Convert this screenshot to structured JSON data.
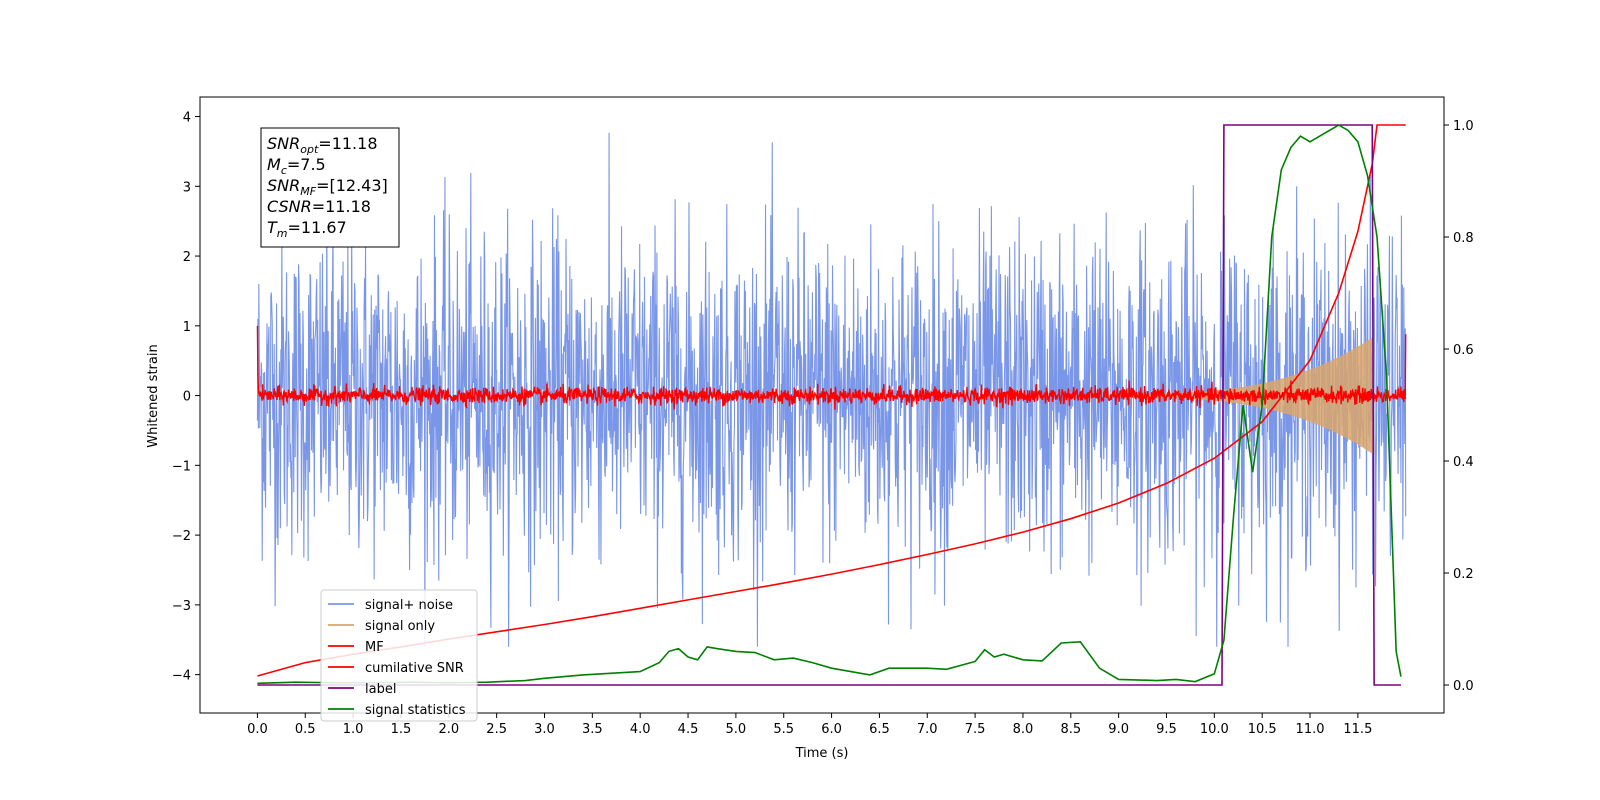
{
  "chart_data": {
    "type": "line",
    "xlabel": "Time (s)",
    "ylabel": "Whitened strain",
    "xlim": [
      -0.6,
      12.4
    ],
    "ylim_left": [
      -4.55,
      4.28
    ],
    "ylim_right": [
      -0.05,
      1.05
    ],
    "xticks": [
      "0.0",
      "0.5",
      "1.0",
      "1.5",
      "2.0",
      "2.5",
      "3.0",
      "3.5",
      "4.0",
      "4.5",
      "5.0",
      "5.5",
      "6.0",
      "6.5",
      "7.0",
      "7.5",
      "8.0",
      "8.5",
      "9.0",
      "9.5",
      "10.0",
      "10.5",
      "11.0",
      "11.5"
    ],
    "yticks_left": [
      "4",
      "3",
      "2",
      "1",
      "0",
      "−1",
      "−2",
      "−3",
      "−4"
    ],
    "yticks_right": [
      "0.0",
      "0.2",
      "0.4",
      "0.6",
      "0.8",
      "1.0"
    ],
    "annotation_lines": [
      {
        "base": "SNR",
        "sub": "opt",
        "rest": "=11.18"
      },
      {
        "base": "M",
        "sub": "c",
        "rest": "=7.5"
      },
      {
        "base": "SNR",
        "sub": "MF",
        "rest": "=[12.43]"
      },
      {
        "base": "CSNR",
        "sub": "",
        "rest": "=11.18"
      },
      {
        "base": "T",
        "sub": "m",
        "rest": "=11.67"
      }
    ],
    "legend": {
      "location": "lower-left",
      "entries": [
        "signal+ noise",
        "signal only",
        "MF",
        "cumilative SNR",
        "label",
        "signal statistics"
      ]
    },
    "series": [
      {
        "name": "signal+ noise",
        "axis": "left",
        "color": "#7a96e8",
        "kind": "noise",
        "x_range": [
          0.0,
          12.0
        ],
        "mean": 0.0,
        "std": 1.15
      },
      {
        "name": "signal only",
        "axis": "left",
        "color": "#d9a66b",
        "kind": "chirp-envelope",
        "x_range": [
          9.0,
          11.67
        ],
        "amplitude_start": 0.03,
        "amplitude_end": 0.85
      },
      {
        "name": "MF",
        "axis": "left",
        "color": "#ff0000",
        "kind": "noise",
        "x_range": [
          0.0,
          12.0
        ],
        "mean": 0.0,
        "std": 0.06,
        "start_value": 1.0,
        "end_value": 0.88
      },
      {
        "name": "cumilative SNR",
        "axis": "right",
        "color": "#ff0000",
        "x": [
          0.0,
          0.5,
          1.0,
          1.5,
          2.0,
          2.5,
          3.0,
          3.5,
          4.0,
          4.5,
          5.0,
          5.5,
          6.0,
          6.5,
          7.0,
          7.5,
          8.0,
          8.5,
          9.0,
          9.5,
          10.0,
          10.5,
          11.0,
          11.3,
          11.5,
          11.65,
          11.7,
          12.0
        ],
        "y": [
          0.016,
          0.04,
          0.055,
          0.068,
          0.082,
          0.095,
          0.108,
          0.122,
          0.137,
          0.152,
          0.167,
          0.182,
          0.198,
          0.215,
          0.233,
          0.252,
          0.273,
          0.297,
          0.325,
          0.36,
          0.405,
          0.47,
          0.58,
          0.7,
          0.81,
          0.93,
          1.0,
          1.0
        ]
      },
      {
        "name": "label",
        "axis": "right",
        "color": "#800080",
        "x": [
          0.0,
          10.08,
          10.1,
          11.65,
          11.67,
          11.95
        ],
        "y": [
          0.0,
          0.0,
          1.0,
          1.0,
          0.0,
          0.0
        ]
      },
      {
        "name": "signal statistics",
        "axis": "right",
        "color": "#008000",
        "x": [
          0.0,
          0.4,
          0.8,
          1.2,
          1.6,
          2.0,
          2.4,
          2.8,
          3.0,
          3.4,
          3.8,
          4.0,
          4.2,
          4.3,
          4.4,
          4.5,
          4.6,
          4.7,
          4.8,
          5.0,
          5.2,
          5.4,
          5.6,
          5.8,
          6.0,
          6.4,
          6.6,
          7.0,
          7.2,
          7.5,
          7.6,
          7.7,
          7.8,
          8.0,
          8.2,
          8.4,
          8.6,
          8.8,
          9.0,
          9.4,
          9.6,
          9.8,
          10.0,
          10.1,
          10.2,
          10.3,
          10.4,
          10.5,
          10.6,
          10.7,
          10.8,
          10.9,
          11.0,
          11.1,
          11.2,
          11.3,
          11.4,
          11.5,
          11.6,
          11.7,
          11.8,
          11.9,
          11.95
        ],
        "y": [
          0.003,
          0.005,
          0.004,
          0.004,
          0.005,
          0.004,
          0.005,
          0.008,
          0.012,
          0.018,
          0.022,
          0.024,
          0.04,
          0.06,
          0.065,
          0.05,
          0.045,
          0.068,
          0.065,
          0.06,
          0.058,
          0.045,
          0.048,
          0.04,
          0.03,
          0.018,
          0.03,
          0.03,
          0.028,
          0.042,
          0.063,
          0.05,
          0.055,
          0.045,
          0.043,
          0.075,
          0.077,
          0.03,
          0.01,
          0.008,
          0.01,
          0.006,
          0.02,
          0.08,
          0.3,
          0.5,
          0.38,
          0.5,
          0.8,
          0.92,
          0.96,
          0.98,
          0.97,
          0.98,
          0.99,
          1.0,
          0.99,
          0.97,
          0.91,
          0.8,
          0.55,
          0.06,
          0.015
        ]
      }
    ]
  }
}
